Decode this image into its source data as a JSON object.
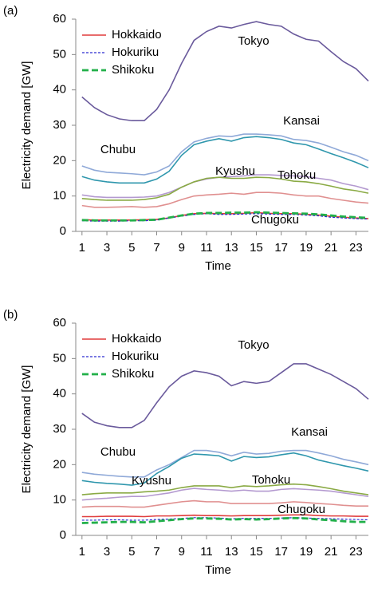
{
  "chart_data": [
    {
      "type": "line",
      "panel_label": "(a)",
      "x_label": "Time",
      "y_label": "Electricity demand [GW]",
      "x": [
        1,
        2,
        3,
        4,
        5,
        6,
        7,
        8,
        9,
        10,
        11,
        12,
        13,
        14,
        15,
        16,
        17,
        18,
        19,
        20,
        21,
        22,
        23,
        24
      ],
      "xlim": [
        0.5,
        24
      ],
      "xticks": [
        1,
        3,
        5,
        7,
        9,
        11,
        13,
        15,
        17,
        19,
        21,
        23
      ],
      "ylim": [
        0,
        60
      ],
      "yticks": [
        0,
        10,
        20,
        30,
        40,
        50,
        60
      ],
      "series": [
        {
          "name": "Hokkaido",
          "color": "#e03c3c",
          "style": "solid",
          "in_legend": true,
          "values": [
            3.3,
            3.2,
            3.2,
            3.2,
            3.2,
            3.3,
            3.4,
            3.8,
            4.5,
            5.0,
            5.1,
            5.0,
            5.0,
            5.1,
            5.3,
            5.1,
            5.0,
            5.0,
            4.8,
            4.6,
            4.3,
            4.0,
            3.8,
            3.6
          ]
        },
        {
          "name": "Hokuriku",
          "color": "#2a2ad0",
          "style": "dotted",
          "in_legend": true,
          "values": [
            3.0,
            2.9,
            2.9,
            2.9,
            3.0,
            3.0,
            3.2,
            3.8,
            4.3,
            4.8,
            5.0,
            4.8,
            4.8,
            4.9,
            5.0,
            4.9,
            4.8,
            4.8,
            4.6,
            4.4,
            4.0,
            3.8,
            3.6,
            3.5
          ]
        },
        {
          "name": "Shikoku",
          "color": "#22b04a",
          "style": "dashed",
          "in_legend": true,
          "values": [
            3.2,
            3.1,
            3.1,
            3.1,
            3.1,
            3.2,
            3.3,
            3.9,
            4.5,
            5.0,
            5.2,
            5.2,
            5.3,
            5.3,
            5.4,
            5.3,
            5.2,
            5.1,
            5.0,
            4.8,
            4.5,
            4.2,
            4.0,
            3.8
          ]
        },
        {
          "name": "Tokyo",
          "color": "#6a5a9c",
          "style": "solid",
          "in_legend": false,
          "values": [
            38,
            35,
            33,
            31.8,
            31.3,
            31.3,
            34.5,
            40,
            47.5,
            54,
            56.5,
            58,
            57.5,
            58.5,
            59.3,
            58.5,
            58,
            55.8,
            54.3,
            53.8,
            50.8,
            48,
            46,
            42.5
          ]
        },
        {
          "name": "Kansai",
          "color": "#8fa9d8",
          "style": "solid",
          "in_legend": false,
          "values": [
            18.5,
            17.3,
            16.7,
            16.5,
            16.3,
            16.0,
            16.8,
            18.5,
            22.5,
            25.3,
            26.3,
            27.0,
            26.8,
            27.5,
            27.5,
            27.3,
            27.0,
            26.0,
            25.7,
            25.0,
            23.8,
            22.5,
            21.5,
            20.0
          ]
        },
        {
          "name": "Chubu",
          "color": "#2f97ad",
          "style": "solid",
          "in_legend": false,
          "values": [
            15.5,
            14.5,
            14.0,
            13.7,
            13.7,
            13.7,
            14.8,
            17.0,
            21.5,
            24.5,
            25.5,
            26.2,
            25.5,
            26.5,
            26.8,
            26.5,
            26.0,
            25.0,
            24.5,
            23.3,
            22.0,
            20.8,
            19.5,
            18.0
          ]
        },
        {
          "name": "Kyushu",
          "color": "#b49ad0",
          "style": "solid",
          "in_legend": false,
          "values": [
            10.3,
            9.8,
            9.6,
            9.6,
            9.6,
            9.7,
            10.0,
            11.0,
            12.5,
            14.0,
            14.8,
            15.3,
            15.5,
            15.7,
            16.0,
            16.0,
            15.8,
            15.7,
            15.5,
            15.0,
            14.5,
            13.5,
            12.8,
            11.8
          ]
        },
        {
          "name": "Tohoku",
          "color": "#8aaa44",
          "style": "solid",
          "in_legend": false,
          "values": [
            9.3,
            9.0,
            8.8,
            8.8,
            8.8,
            9.0,
            9.5,
            10.5,
            12.5,
            14.0,
            15.0,
            15.3,
            15.0,
            15.0,
            15.3,
            15.2,
            14.8,
            14.2,
            14.0,
            13.5,
            12.8,
            12.0,
            11.5,
            10.8
          ]
        },
        {
          "name": "Chugoku",
          "color": "#e09090",
          "style": "solid",
          "in_legend": false,
          "values": [
            7.3,
            6.8,
            6.8,
            6.9,
            7.0,
            6.8,
            7.0,
            7.8,
            9.0,
            10.0,
            10.3,
            10.5,
            10.8,
            10.5,
            11.0,
            11.0,
            10.8,
            10.3,
            10.0,
            10.0,
            9.3,
            8.8,
            8.3,
            8.0
          ]
        }
      ]
    },
    {
      "type": "line",
      "panel_label": "(b)",
      "x_label": "Time",
      "y_label": "Electricity demand [GW]",
      "x": [
        1,
        2,
        3,
        4,
        5,
        6,
        7,
        8,
        9,
        10,
        11,
        12,
        13,
        14,
        15,
        16,
        17,
        18,
        19,
        20,
        21,
        22,
        23,
        24
      ],
      "xlim": [
        0.5,
        24
      ],
      "xticks": [
        1,
        3,
        5,
        7,
        9,
        11,
        13,
        15,
        17,
        19,
        21,
        23
      ],
      "ylim": [
        0,
        60
      ],
      "yticks": [
        0,
        10,
        20,
        30,
        40,
        50,
        60
      ],
      "series": [
        {
          "name": "Hokkaido",
          "color": "#e03c3c",
          "style": "solid",
          "in_legend": true,
          "values": [
            5.3,
            5.3,
            5.4,
            5.4,
            5.4,
            5.3,
            5.5,
            5.5,
            5.6,
            5.7,
            5.6,
            5.6,
            5.5,
            5.6,
            5.6,
            5.6,
            5.7,
            5.8,
            5.8,
            5.6,
            5.5,
            5.5,
            5.4,
            5.4
          ]
        },
        {
          "name": "Hokuriku",
          "color": "#2a2ad0",
          "style": "dotted",
          "in_legend": true,
          "values": [
            4.3,
            4.3,
            4.4,
            4.4,
            4.3,
            4.3,
            4.5,
            4.6,
            4.8,
            5.0,
            5.0,
            4.9,
            4.7,
            4.8,
            4.8,
            4.8,
            4.9,
            5.0,
            4.9,
            4.8,
            4.7,
            4.6,
            4.5,
            4.4
          ]
        },
        {
          "name": "Shikoku",
          "color": "#22b04a",
          "style": "dashed",
          "in_legend": true,
          "values": [
            3.5,
            3.6,
            3.7,
            3.8,
            3.8,
            3.7,
            4.0,
            4.3,
            4.6,
            4.8,
            4.8,
            4.7,
            4.5,
            4.6,
            4.5,
            4.6,
            4.8,
            4.9,
            4.8,
            4.5,
            4.3,
            4.0,
            3.8,
            3.8
          ]
        },
        {
          "name": "Tokyo",
          "color": "#6a5a9c",
          "style": "solid",
          "in_legend": false,
          "values": [
            34.5,
            32,
            31,
            30.5,
            30.5,
            32.5,
            37.5,
            42,
            45,
            46.5,
            46,
            45,
            42.3,
            43.5,
            43,
            43.5,
            46,
            48.5,
            48.5,
            47,
            45.5,
            43.5,
            41.5,
            38.5
          ]
        },
        {
          "name": "Kansai",
          "color": "#8fa9d8",
          "style": "solid",
          "in_legend": false,
          "values": [
            17.8,
            17.3,
            17,
            16.7,
            16.5,
            16.5,
            18.5,
            20,
            22,
            24,
            24,
            23.5,
            22.5,
            23.5,
            23,
            23.2,
            23.8,
            24,
            24,
            23.3,
            22.5,
            21.5,
            20.8,
            20
          ]
        },
        {
          "name": "Chubu",
          "color": "#2f97ad",
          "style": "solid",
          "in_legend": false,
          "values": [
            15.5,
            15,
            14.7,
            14.5,
            14.2,
            14.8,
            17.5,
            19.5,
            21.8,
            23,
            22.8,
            22.5,
            21,
            22.3,
            22,
            22.2,
            22.8,
            23.3,
            22.5,
            21.3,
            20.5,
            19.7,
            19,
            18.2
          ]
        },
        {
          "name": "Kyushu",
          "color": "#b49ad0",
          "style": "solid",
          "in_legend": false,
          "values": [
            10,
            10.3,
            10.5,
            10.8,
            11,
            11,
            11.5,
            12,
            12.8,
            13.3,
            13,
            12.8,
            12.5,
            12.8,
            12.5,
            12.5,
            13,
            13.2,
            13,
            12.8,
            12.5,
            12,
            11.5,
            11
          ]
        },
        {
          "name": "Tohoku",
          "color": "#8aaa44",
          "style": "solid",
          "in_legend": false,
          "values": [
            11.5,
            11.8,
            12,
            12,
            12,
            12.3,
            12.5,
            12.8,
            13.5,
            14,
            14,
            14,
            13.5,
            14,
            13.8,
            14,
            14.3,
            14.5,
            14.3,
            13.8,
            13.2,
            12.5,
            12,
            11.5
          ]
        },
        {
          "name": "Chugoku",
          "color": "#e09090",
          "style": "solid",
          "in_legend": false,
          "values": [
            8,
            8.2,
            8.2,
            8.2,
            8,
            8,
            8.5,
            9,
            9.5,
            9.8,
            9.5,
            9.5,
            9,
            9,
            9,
            9,
            9.2,
            9.5,
            9.3,
            9,
            8.8,
            8.5,
            8.3,
            8.3
          ]
        }
      ]
    }
  ]
}
